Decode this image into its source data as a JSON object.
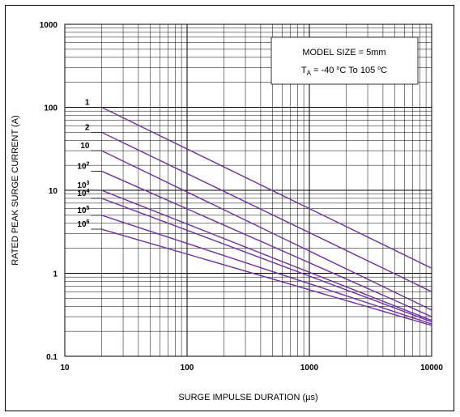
{
  "chart_data": {
    "type": "line",
    "xlabel": "SURGE IMPULSE DURATION (µs)",
    "ylabel": "RATED PEAK SURGE CURRENT (A)",
    "x_scale": "log",
    "y_scale": "log",
    "xlim": [
      10,
      10000
    ],
    "ylim": [
      0.1,
      1000
    ],
    "grid": true,
    "x_ticks": [
      "10",
      "100",
      "1000",
      "10000"
    ],
    "y_ticks": [
      "0.1",
      "1",
      "10",
      "100",
      "1000"
    ],
    "annotation": {
      "line1": "MODEL SIZE = 5mm",
      "line2_prefix": "T",
      "line2_sub": "A",
      "line2_mid": " = -40 ",
      "line2_sup1": "o",
      "line2_mid2": "C To 105 ",
      "line2_sup2": "o",
      "line2_end": "C"
    },
    "series_color": "#7030a0",
    "series": [
      {
        "name": "1",
        "base": "1",
        "exp": "",
        "x": [
          20,
          10000
        ],
        "y": [
          100,
          1.15
        ]
      },
      {
        "name": "2",
        "base": "2",
        "exp": "",
        "x": [
          20,
          10000
        ],
        "y": [
          50,
          0.6
        ]
      },
      {
        "name": "10",
        "base": "10",
        "exp": "",
        "x": [
          20,
          10000
        ],
        "y": [
          30,
          0.36
        ]
      },
      {
        "name": "10^2",
        "base": "10",
        "exp": "2",
        "x": [
          20,
          10000
        ],
        "y": [
          17,
          0.3
        ]
      },
      {
        "name": "10^3",
        "base": "10",
        "exp": "3",
        "x": [
          20,
          10000
        ],
        "y": [
          10,
          0.27
        ]
      },
      {
        "name": "10^4",
        "base": "10",
        "exp": "4",
        "x": [
          20,
          10000
        ],
        "y": [
          8,
          0.26
        ]
      },
      {
        "name": "10^5",
        "base": "10",
        "exp": "5",
        "x": [
          20,
          10000
        ],
        "y": [
          5,
          0.245
        ]
      },
      {
        "name": "10^6",
        "base": "10",
        "exp": "6",
        "x": [
          20,
          10000
        ],
        "y": [
          3.4,
          0.235
        ]
      }
    ]
  }
}
